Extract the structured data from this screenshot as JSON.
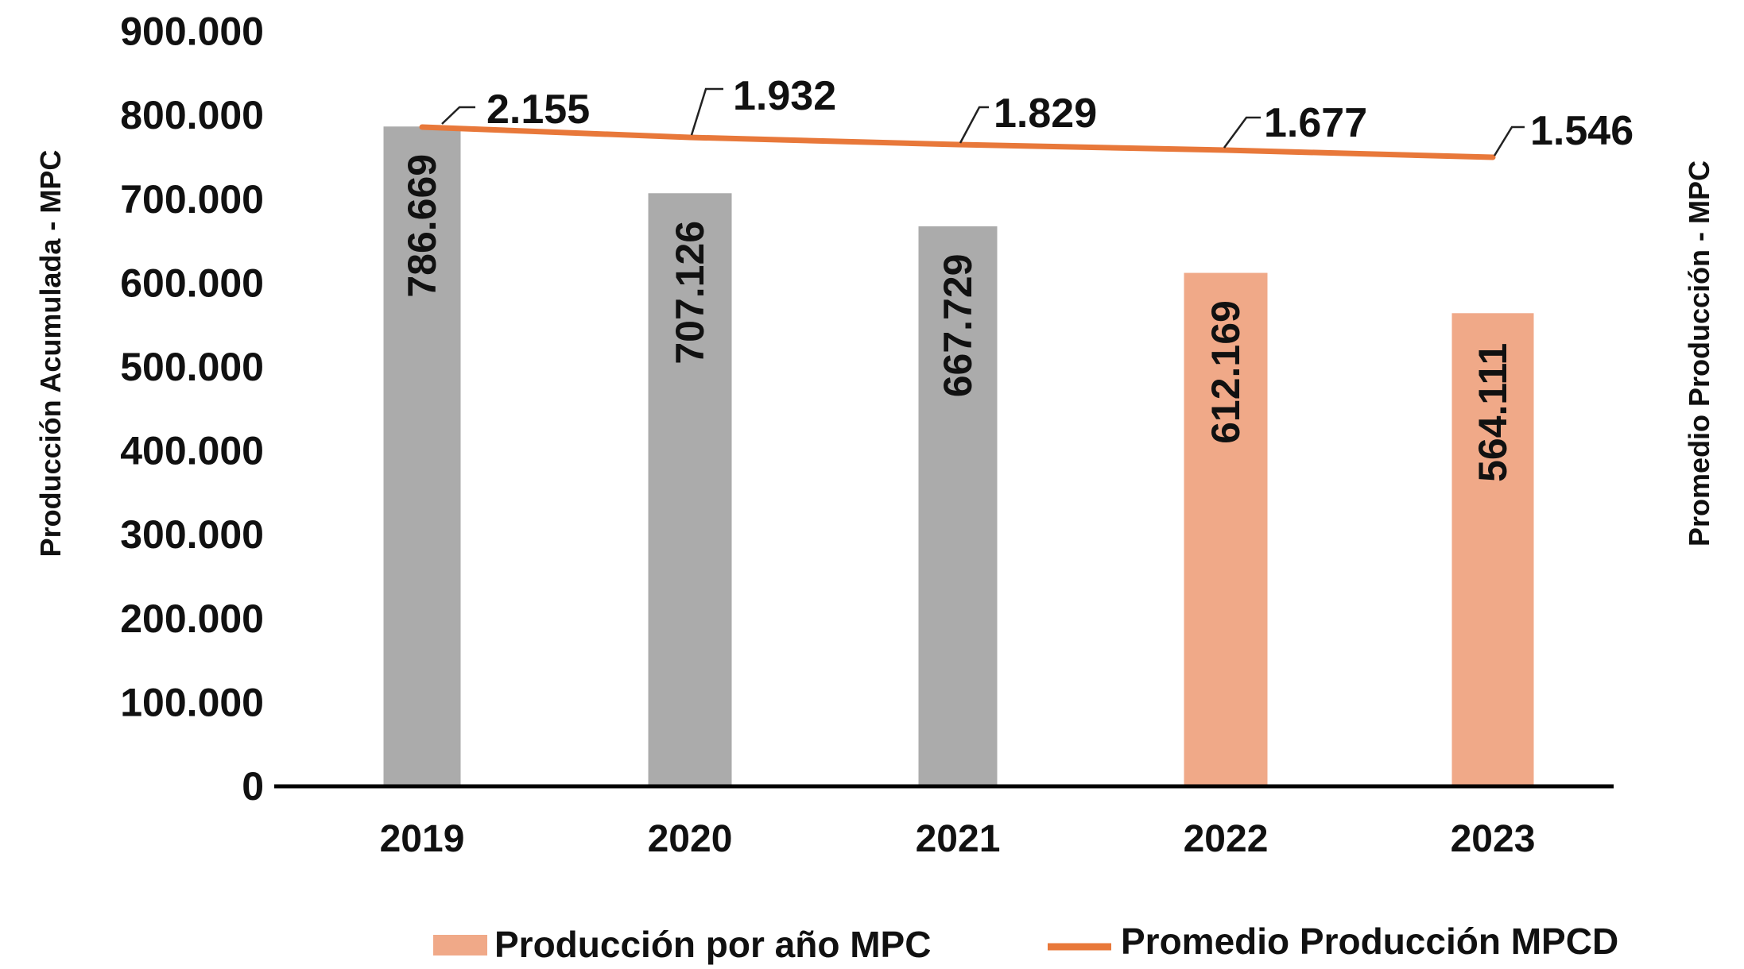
{
  "chart_data": {
    "type": "bar",
    "categories": [
      "2019",
      "2020",
      "2021",
      "2022",
      "2023"
    ],
    "bar_series": {
      "name": "Producción por año MPC",
      "values": [
        786669,
        707126,
        667729,
        612169,
        564111
      ],
      "value_labels": [
        "786.669",
        "707.126",
        "667.729",
        "612.169",
        "564.111"
      ],
      "colors": [
        "#ababab",
        "#ababab",
        "#ababab",
        "#f0a988",
        "#f0a988"
      ]
    },
    "line_series": {
      "name": "Promedio Producción MPCD",
      "values": [
        2155,
        1932,
        1829,
        1677,
        1546
      ],
      "value_labels": [
        "2.155",
        "1.932",
        "1.829",
        "1.677",
        "1.546"
      ],
      "color": "#e8783a"
    },
    "y_axis": {
      "label": "Producción Acumulada - MPC",
      "ylim": [
        0,
        900000
      ],
      "ticks": [
        0,
        100000,
        200000,
        300000,
        400000,
        500000,
        600000,
        700000,
        800000,
        900000
      ],
      "tick_labels": [
        "0",
        "100.000",
        "200.000",
        "300.000",
        "400.000",
        "500.000",
        "600.000",
        "700.000",
        "800.000",
        "900.000"
      ]
    },
    "y2_axis": {
      "label": "Promedio Producción - MPC"
    },
    "legend": {
      "position": "bottom",
      "items": [
        {
          "label": "Producción por año MPC",
          "color": "#f0a988",
          "kind": "bar"
        },
        {
          "label": "Promedio Producción MPCD",
          "color": "#e8783a",
          "kind": "line"
        }
      ]
    },
    "grid": false
  }
}
